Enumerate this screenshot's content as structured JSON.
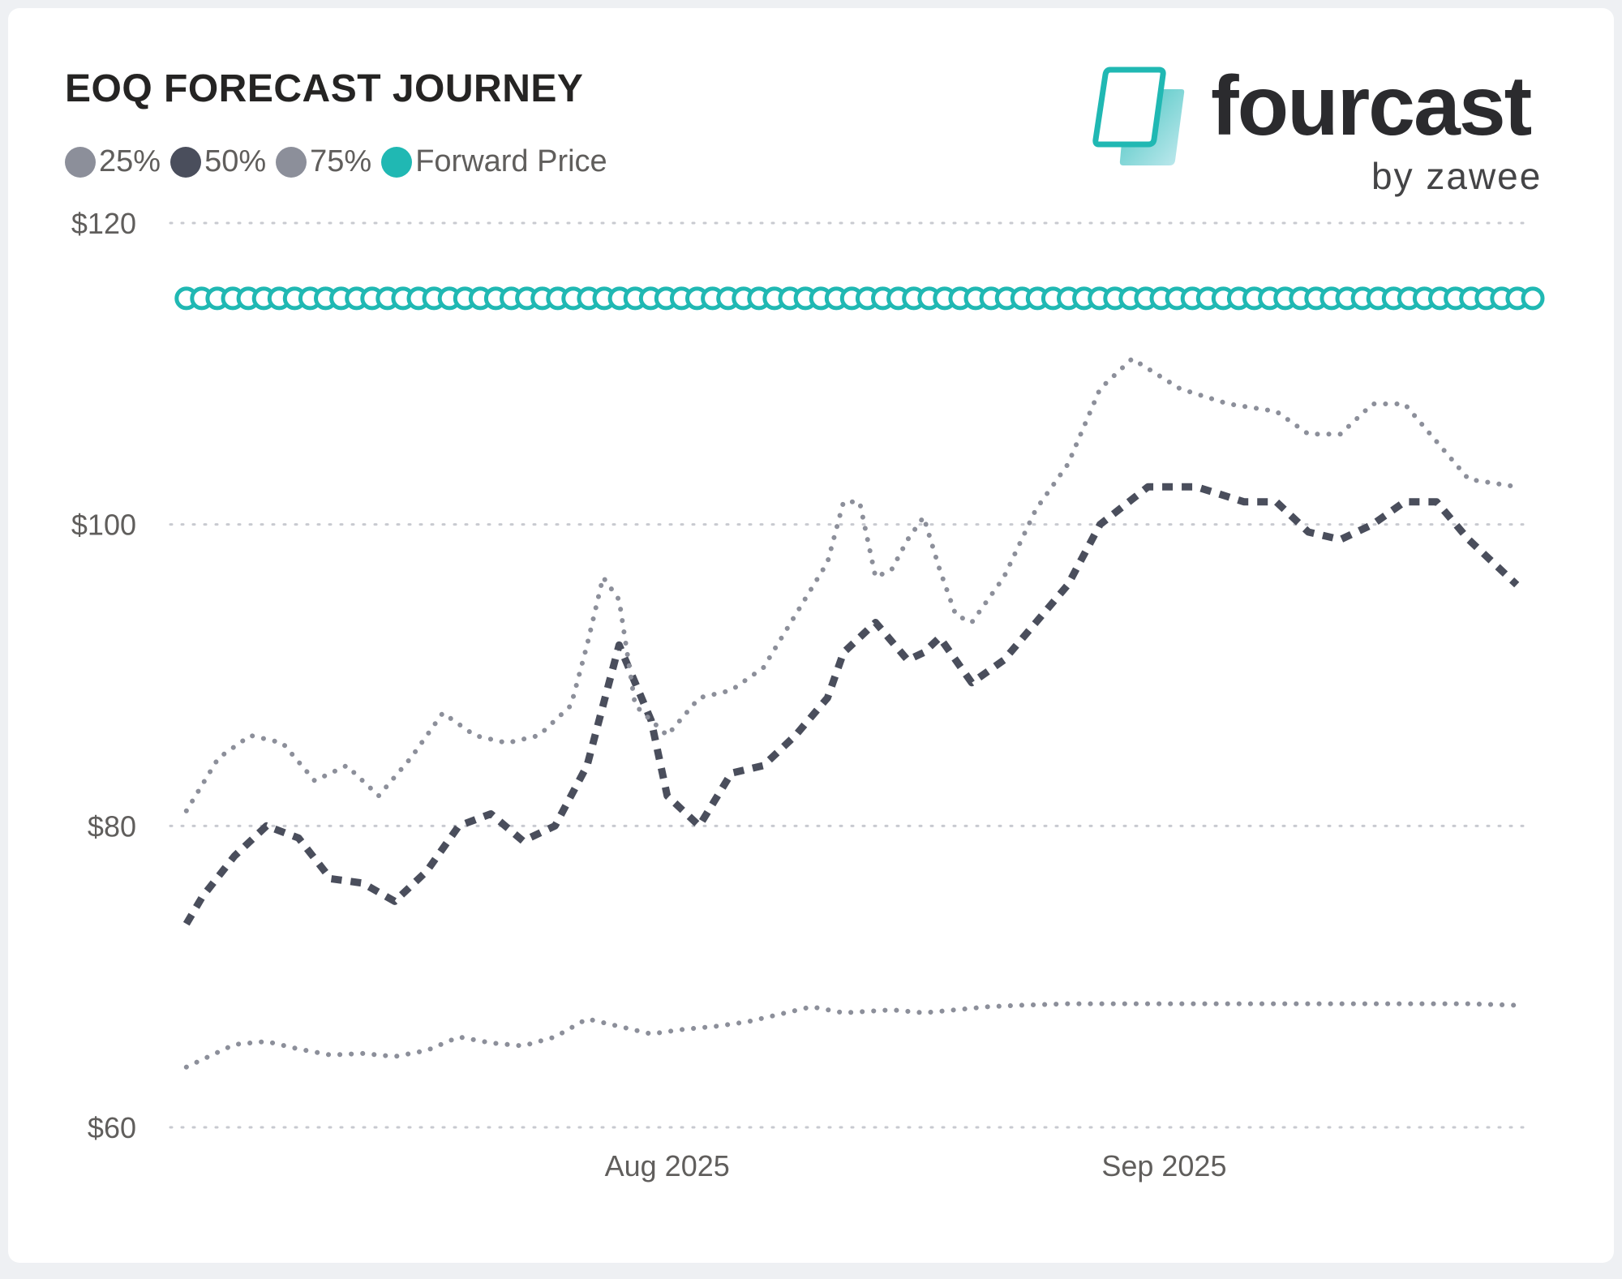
{
  "header": {
    "title": "EOQ FORECAST JOURNEY"
  },
  "logo": {
    "wordmark": "fourcast",
    "tagline": "by zawee",
    "icon": "card-stack-icon"
  },
  "legend": {
    "items": [
      {
        "label": "25%",
        "color": "#8c8f9a"
      },
      {
        "label": "50%",
        "color": "#4a4e5c"
      },
      {
        "label": "75%",
        "color": "#8c8f9a"
      },
      {
        "label": "Forward Price",
        "color": "#20b8b3"
      }
    ]
  },
  "colors": {
    "p25": "#8c8f9a",
    "p50": "#4a4e5c",
    "p75": "#8c8f9a",
    "forward": "#20b8b3",
    "grid": "#c8cad0",
    "axis_text": "#605e5c"
  },
  "chart_data": {
    "type": "line",
    "title": "EOQ FORECAST JOURNEY",
    "xlabel": "",
    "ylabel": "",
    "ylim": [
      60,
      120
    ],
    "y_ticks": [
      60,
      80,
      100,
      120
    ],
    "y_tick_labels": [
      "$60",
      "$80",
      "$100",
      "$120"
    ],
    "x_range": [
      "2025-07-01",
      "2025-09-24"
    ],
    "x_ticks": [
      {
        "date": "2025-08-01",
        "label": "Aug 2025"
      },
      {
        "date": "2025-09-01",
        "label": "Sep 2025"
      }
    ],
    "grid": true,
    "legend_position": "top-left",
    "series": [
      {
        "name": "25%",
        "style": "dotted",
        "x": [
          "2025-07-02",
          "2025-07-05",
          "2025-07-07",
          "2025-07-09",
          "2025-07-11",
          "2025-07-13",
          "2025-07-15",
          "2025-07-17",
          "2025-07-19",
          "2025-07-21",
          "2025-07-23",
          "2025-07-25",
          "2025-07-27",
          "2025-07-29",
          "2025-07-31",
          "2025-08-02",
          "2025-08-04",
          "2025-08-06",
          "2025-08-08",
          "2025-08-10",
          "2025-08-12",
          "2025-08-15",
          "2025-08-17",
          "2025-08-19",
          "2025-08-21",
          "2025-08-23",
          "2025-08-26",
          "2025-08-29",
          "2025-09-01",
          "2025-09-05",
          "2025-09-09",
          "2025-09-13",
          "2025-09-17",
          "2025-09-20",
          "2025-09-23"
        ],
        "values": [
          64.0,
          65.5,
          65.7,
          65.2,
          64.8,
          64.9,
          64.7,
          65.1,
          66.0,
          65.6,
          65.4,
          66.0,
          67.2,
          66.7,
          66.2,
          66.5,
          66.7,
          67.0,
          67.5,
          68.0,
          67.6,
          67.8,
          67.6,
          67.8,
          68.0,
          68.1,
          68.2,
          68.2,
          68.2,
          68.2,
          68.2,
          68.2,
          68.2,
          68.2,
          68.1
        ]
      },
      {
        "name": "50%",
        "style": "dashed",
        "x": [
          "2025-07-02",
          "2025-07-03",
          "2025-07-05",
          "2025-07-07",
          "2025-07-09",
          "2025-07-11",
          "2025-07-13",
          "2025-07-15",
          "2025-07-17",
          "2025-07-19",
          "2025-07-21",
          "2025-07-23",
          "2025-07-25",
          "2025-07-27",
          "2025-07-28",
          "2025-07-29",
          "2025-07-31",
          "2025-08-01",
          "2025-08-03",
          "2025-08-05",
          "2025-08-07",
          "2025-08-09",
          "2025-08-11",
          "2025-08-12",
          "2025-08-14",
          "2025-08-16",
          "2025-08-17",
          "2025-08-18",
          "2025-08-20",
          "2025-08-22",
          "2025-08-24",
          "2025-08-26",
          "2025-08-28",
          "2025-08-31",
          "2025-09-03",
          "2025-09-06",
          "2025-09-08",
          "2025-09-10",
          "2025-09-12",
          "2025-09-14",
          "2025-09-16",
          "2025-09-18",
          "2025-09-20",
          "2025-09-23"
        ],
        "values": [
          73.5,
          75.3,
          78.0,
          80.0,
          79.2,
          76.5,
          76.2,
          75.0,
          77.0,
          80.0,
          80.8,
          79.0,
          80.0,
          84.0,
          88.0,
          92.0,
          87.0,
          82.0,
          80.0,
          83.5,
          84.0,
          86.0,
          88.5,
          91.5,
          93.5,
          91.0,
          91.5,
          92.5,
          89.5,
          91.0,
          93.5,
          96.0,
          100.0,
          102.5,
          102.5,
          101.5,
          101.5,
          99.5,
          99.0,
          100.0,
          101.5,
          101.5,
          99.0,
          96.0
        ]
      },
      {
        "name": "75%",
        "style": "dotted",
        "x": [
          "2025-07-02",
          "2025-07-04",
          "2025-07-06",
          "2025-07-08",
          "2025-07-10",
          "2025-07-12",
          "2025-07-14",
          "2025-07-16",
          "2025-07-18",
          "2025-07-20",
          "2025-07-22",
          "2025-07-24",
          "2025-07-26",
          "2025-07-27",
          "2025-07-28",
          "2025-07-29",
          "2025-07-30",
          "2025-08-01",
          "2025-08-03",
          "2025-08-05",
          "2025-08-07",
          "2025-08-09",
          "2025-08-11",
          "2025-08-12",
          "2025-08-13",
          "2025-08-14",
          "2025-08-15",
          "2025-08-16",
          "2025-08-17",
          "2025-08-18",
          "2025-08-19",
          "2025-08-20",
          "2025-08-22",
          "2025-08-24",
          "2025-08-26",
          "2025-08-28",
          "2025-08-30",
          "2025-09-02",
          "2025-09-05",
          "2025-09-08",
          "2025-09-10",
          "2025-09-12",
          "2025-09-14",
          "2025-09-16",
          "2025-09-18",
          "2025-09-20",
          "2025-09-23"
        ],
        "values": [
          81.0,
          84.5,
          86.0,
          85.5,
          83.0,
          84.0,
          82.0,
          84.5,
          87.5,
          86.0,
          85.5,
          86.0,
          88.0,
          92.0,
          96.5,
          95.0,
          88.0,
          86.0,
          88.5,
          89.0,
          90.5,
          94.0,
          97.5,
          101.5,
          101.5,
          96.5,
          97.0,
          99.0,
          100.5,
          97.0,
          94.0,
          93.5,
          96.5,
          101.0,
          104.0,
          109.0,
          111.0,
          109.0,
          108.0,
          107.5,
          106.0,
          106.0,
          108.0,
          108.0,
          105.5,
          103.0,
          102.5
        ]
      },
      {
        "name": "Forward Price",
        "style": "circle-markers",
        "x_start": "2025-07-02",
        "x_end": "2025-09-24",
        "value": 115.0
      }
    ]
  }
}
